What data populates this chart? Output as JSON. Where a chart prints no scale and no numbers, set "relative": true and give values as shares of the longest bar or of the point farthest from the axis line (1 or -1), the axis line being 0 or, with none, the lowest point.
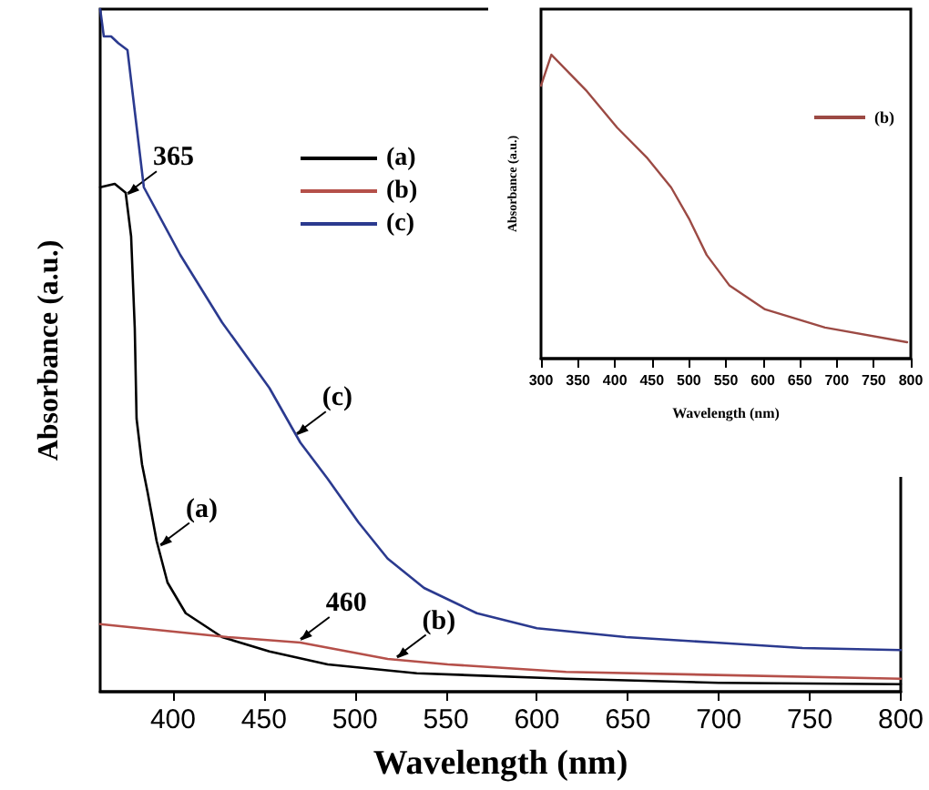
{
  "chart_data": [
    {
      "type": "line",
      "xlabel": "Wavelength (nm)",
      "ylabel": "Absorbance (a.u.)",
      "relative": true,
      "xlim": [
        360,
        800
      ],
      "xticks": [
        400,
        450,
        500,
        550,
        600,
        650,
        700,
        750,
        800
      ],
      "legend": "top",
      "grid": false,
      "marker": "none",
      "series": [
        {
          "name": "(a)",
          "color": "#000000",
          "x": [
            360,
            368,
            374,
            377,
            379,
            380,
            383,
            386,
            391,
            397,
            407,
            427,
            453,
            485,
            534,
            616,
            700,
            800
          ],
          "values": [
            0.739,
            0.744,
            0.731,
            0.667,
            0.533,
            0.4,
            0.333,
            0.293,
            0.221,
            0.16,
            0.115,
            0.08,
            0.059,
            0.04,
            0.027,
            0.019,
            0.013,
            0.011
          ]
        },
        {
          "name": "(b)",
          "color": "#b5504a",
          "x": [
            360,
            430,
            470,
            492,
            518,
            551,
            616,
            800
          ],
          "values": [
            0.099,
            0.08,
            0.072,
            0.061,
            0.048,
            0.04,
            0.029,
            0.019
          ]
        },
        {
          "name": "(c)",
          "color": "#2b3a8f",
          "x": [
            360,
            362,
            366,
            370,
            375,
            384,
            404,
            427,
            453,
            470,
            485,
            502,
            518,
            538,
            567,
            600,
            649,
            698,
            746,
            800
          ],
          "values": [
            1.0,
            0.96,
            0.96,
            0.95,
            0.94,
            0.739,
            0.64,
            0.541,
            0.445,
            0.365,
            0.312,
            0.248,
            0.195,
            0.152,
            0.115,
            0.093,
            0.08,
            0.072,
            0.064,
            0.061
          ]
        }
      ],
      "annotations": [
        {
          "text": "365",
          "x": 375,
          "y": 0.725
        },
        {
          "text": "(c)",
          "x": 468,
          "y": 0.373
        },
        {
          "text": "(a)",
          "x": 393,
          "y": 0.21
        },
        {
          "text": "460",
          "x": 470,
          "y": 0.072
        },
        {
          "text": "(b)",
          "x": 523,
          "y": 0.046
        }
      ]
    },
    {
      "type": "line",
      "xlabel": "Wavelength (nm)",
      "ylabel": "Absorbance (a.u.)",
      "relative": true,
      "xlim": [
        300,
        800
      ],
      "xticks": [
        300,
        350,
        400,
        450,
        500,
        550,
        600,
        650,
        700,
        750,
        800
      ],
      "legend": "top right",
      "grid": false,
      "marker": "none",
      "series": [
        {
          "name": "(b)",
          "color": "#9c4a44",
          "x": [
            300,
            314,
            362,
            403,
            444,
            476,
            500,
            524,
            555,
            603,
            684,
            795
          ],
          "values": [
            0.898,
            1.0,
            0.88,
            0.76,
            0.659,
            0.563,
            0.461,
            0.341,
            0.24,
            0.162,
            0.102,
            0.054
          ]
        }
      ]
    }
  ]
}
